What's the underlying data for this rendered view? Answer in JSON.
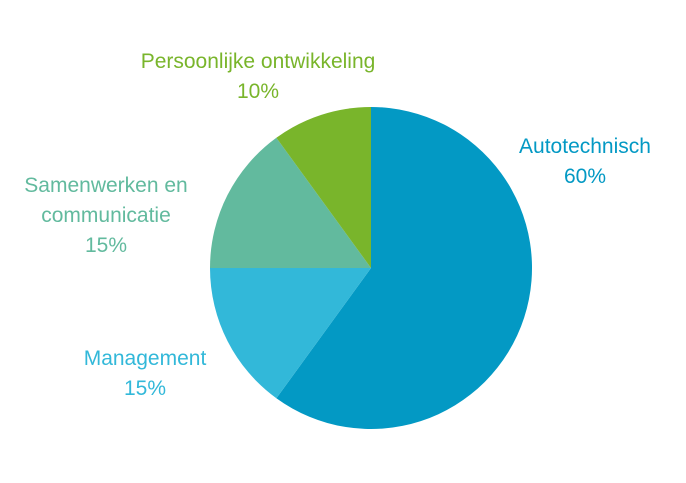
{
  "chart_data": {
    "type": "pie",
    "title": "",
    "slices": [
      {
        "label": "Autotechnisch",
        "value": 60,
        "value_label": "60%",
        "color": "#0399C4"
      },
      {
        "label": "Management",
        "value": 15,
        "value_label": "15%",
        "color": "#32B8D9"
      },
      {
        "label": "Samenwerken en communicatie",
        "label_lines": [
          "Samenwerken en",
          "communicatie"
        ],
        "value": 15,
        "value_label": "15%",
        "color": "#62BA9E"
      },
      {
        "label": "Persoonlijke ontwikkeling",
        "value": 10,
        "value_label": "10%",
        "color": "#79B52B"
      }
    ],
    "start_angle": "12 o'clock",
    "direction": "clockwise",
    "legend": "none, labels placed next to slices"
  }
}
